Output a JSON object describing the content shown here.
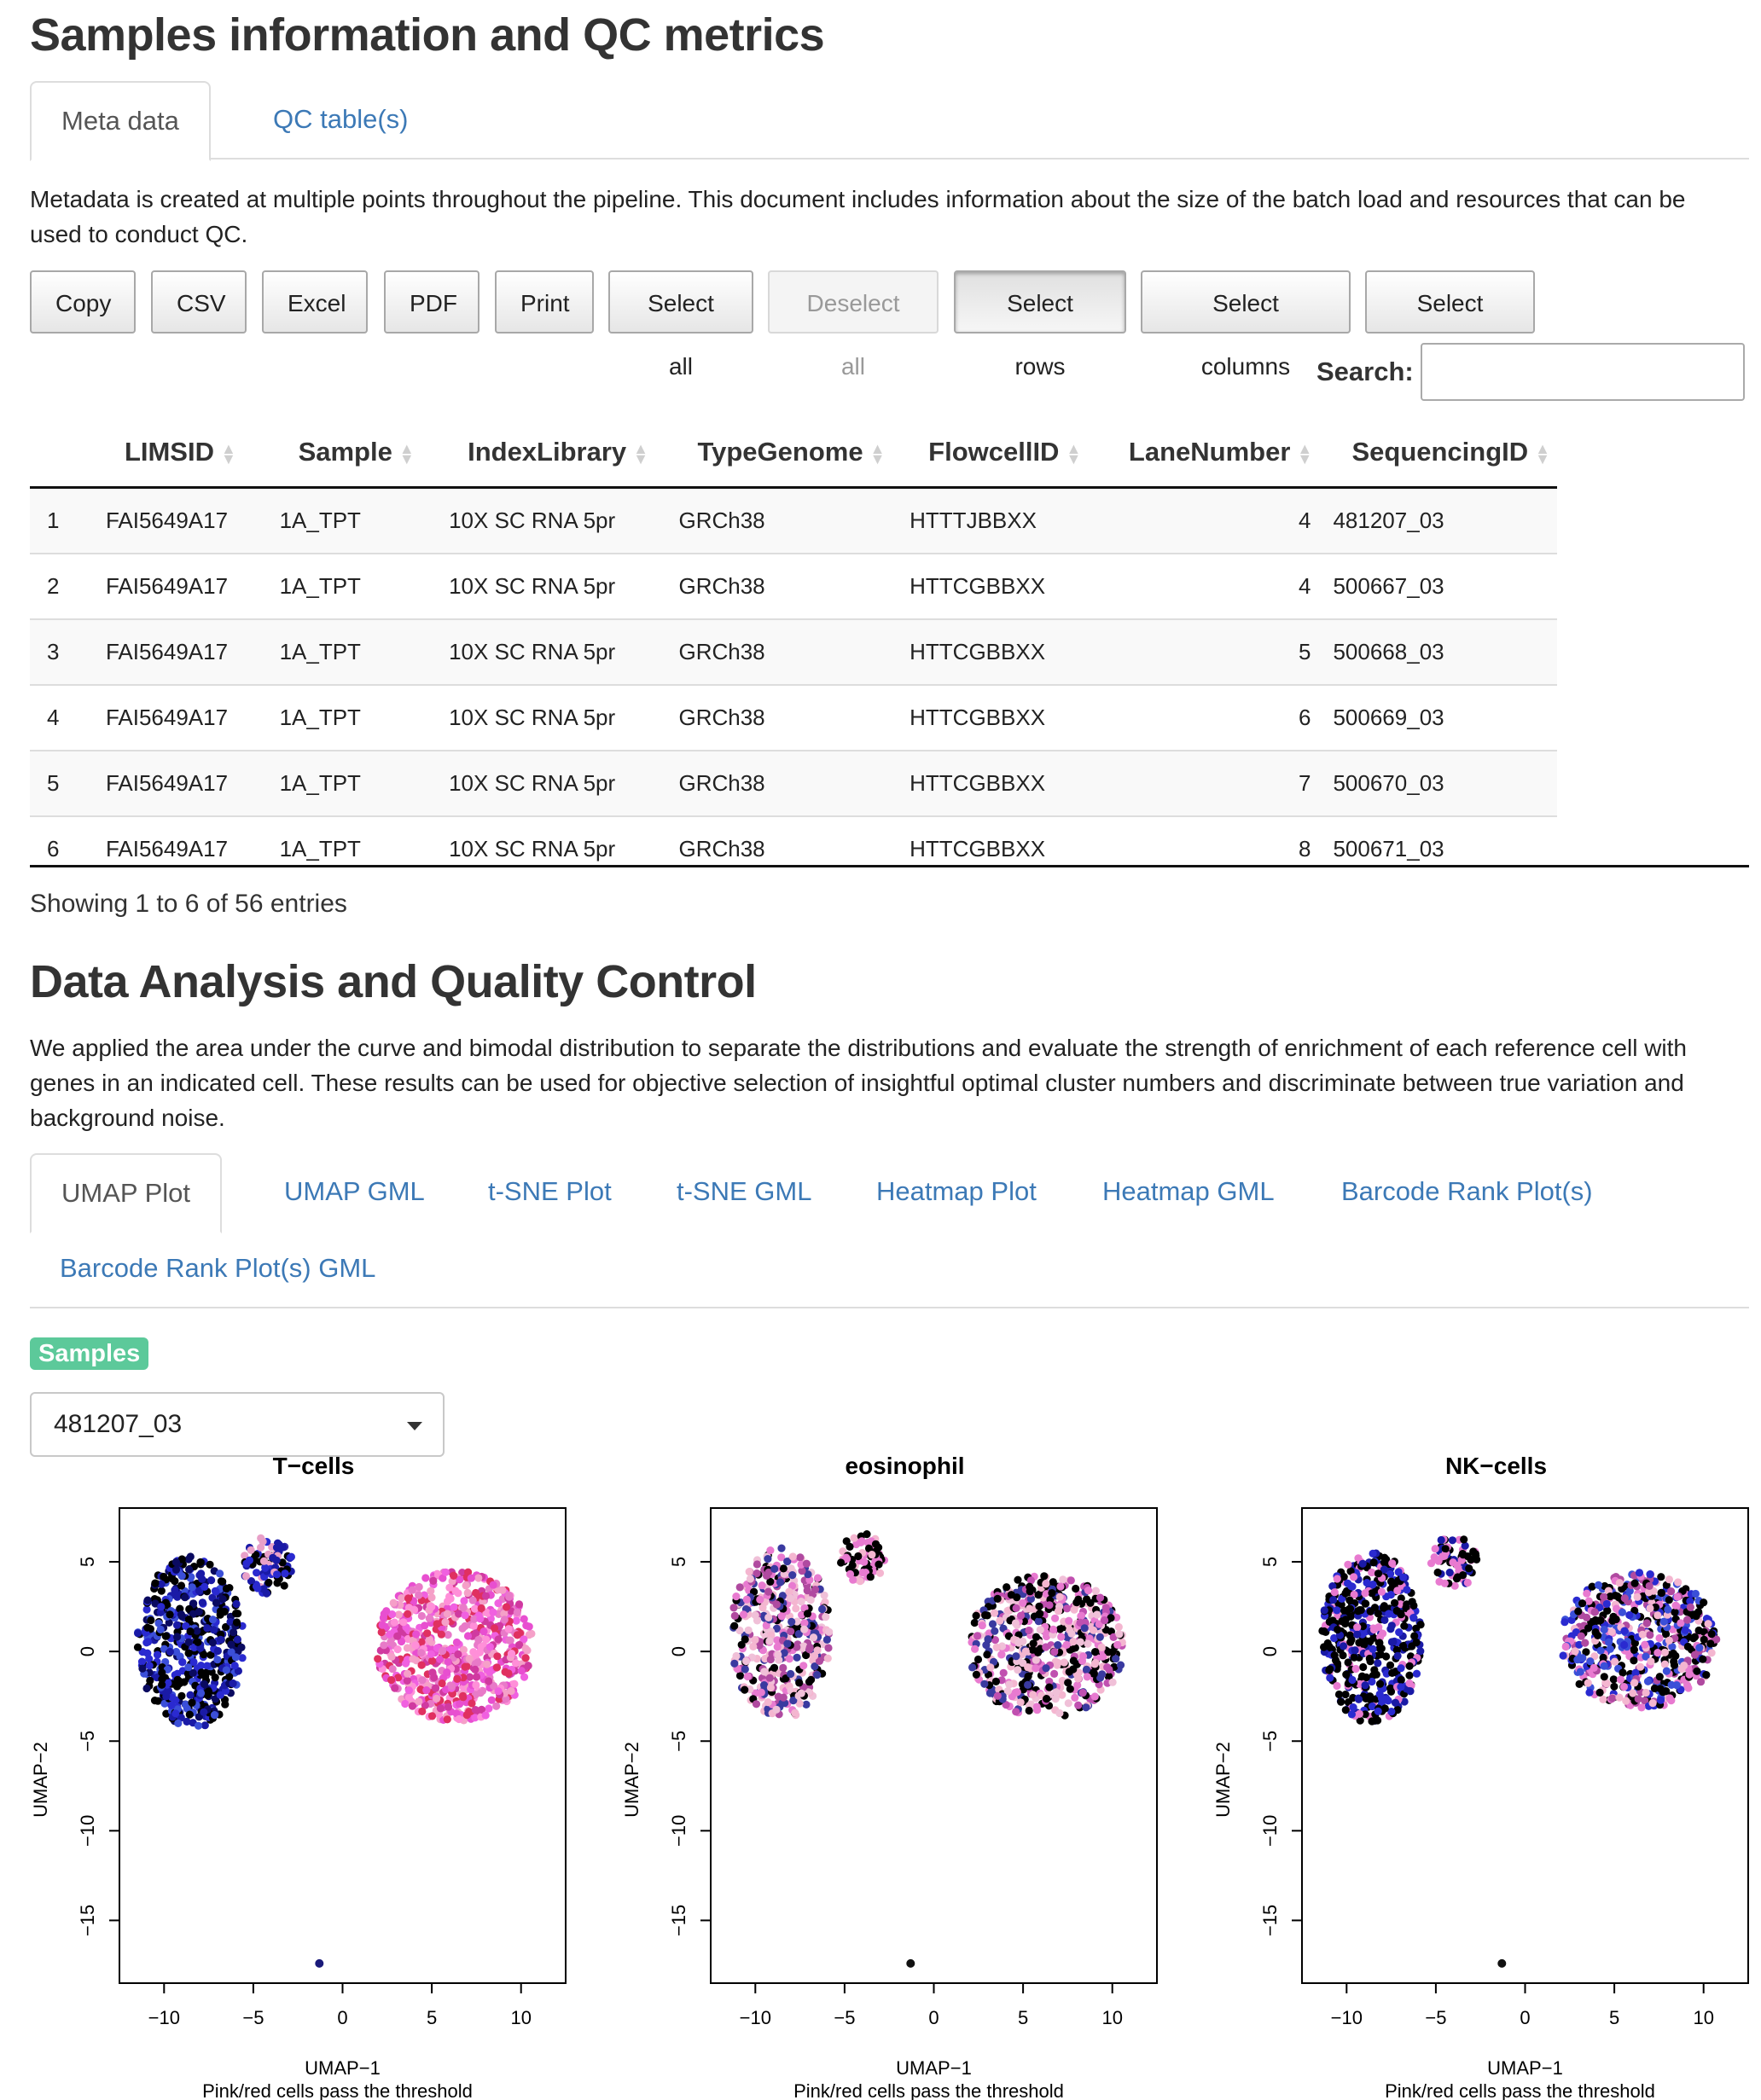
{
  "section1": {
    "title": "Samples information and QC metrics",
    "tabs": [
      {
        "label": "Meta data",
        "active": true
      },
      {
        "label": "QC table(s)",
        "active": false
      }
    ],
    "description": "Metadata is created at multiple points throughout the pipeline. This document includes information about the size of the batch load and resources that can be used to conduct QC.",
    "buttons": [
      {
        "label": "Copy",
        "state": "normal"
      },
      {
        "label": "CSV",
        "state": "normal"
      },
      {
        "label": "Excel",
        "state": "normal"
      },
      {
        "label": "PDF",
        "state": "normal"
      },
      {
        "label": "Print",
        "state": "normal"
      },
      {
        "label": "Select all",
        "state": "normal"
      },
      {
        "label": "Deselect all",
        "state": "disabled"
      },
      {
        "label": "Select rows",
        "state": "pressed"
      },
      {
        "label": "Select columns",
        "state": "normal"
      },
      {
        "label": "Select cells",
        "state": "normal"
      }
    ],
    "search": {
      "label": "Search:",
      "value": ""
    },
    "table": {
      "columns": [
        "",
        "LIMSID",
        "Sample",
        "IndexLibrary",
        "TypeGenome",
        "FlowcellID",
        "LaneNumber",
        "SequencingID"
      ],
      "rows": [
        [
          "1",
          "FAI5649A17",
          "1A_TPT",
          "10X SC RNA 5pr",
          "GRCh38",
          "HTTTJBBXX",
          "4",
          "481207_03"
        ],
        [
          "2",
          "FAI5649A17",
          "1A_TPT",
          "10X SC RNA 5pr",
          "GRCh38",
          "HTTCGBBXX",
          "4",
          "500667_03"
        ],
        [
          "3",
          "FAI5649A17",
          "1A_TPT",
          "10X SC RNA 5pr",
          "GRCh38",
          "HTTCGBBXX",
          "5",
          "500668_03"
        ],
        [
          "4",
          "FAI5649A17",
          "1A_TPT",
          "10X SC RNA 5pr",
          "GRCh38",
          "HTTCGBBXX",
          "6",
          "500669_03"
        ],
        [
          "5",
          "FAI5649A17",
          "1A_TPT",
          "10X SC RNA 5pr",
          "GRCh38",
          "HTTCGBBXX",
          "7",
          "500670_03"
        ],
        [
          "6",
          "FAI5649A17",
          "1A_TPT",
          "10X SC RNA 5pr",
          "GRCh38",
          "HTTCGBBXX",
          "8",
          "500671_03"
        ]
      ]
    },
    "info": "Showing 1 to 6 of 56 entries"
  },
  "section2": {
    "title": "Data Analysis and Quality Control",
    "description": "We applied the area under the curve and bimodal distribution to separate the distributions and evaluate the strength of enrichment of each reference cell with genes in an indicated cell. These results can be used for objective selection of insightful optimal cluster numbers and discriminate between true variation and background noise.",
    "tabs": [
      {
        "label": "UMAP Plot",
        "active": true
      },
      {
        "label": "UMAP GML",
        "active": false
      },
      {
        "label": "t-SNE Plot",
        "active": false
      },
      {
        "label": "t-SNE GML",
        "active": false
      },
      {
        "label": "Heatmap Plot",
        "active": false
      },
      {
        "label": "Heatmap GML",
        "active": false
      },
      {
        "label": "Barcode Rank Plot(s)",
        "active": false
      },
      {
        "label": "Barcode Rank Plot(s) GML",
        "active": false
      }
    ],
    "samples_badge": "Samples",
    "sample_select": {
      "value": "481207_03"
    }
  },
  "chart_data": [
    {
      "type": "scatter",
      "title": "T−cells",
      "xlabel": "UMAP−1",
      "ylabel": "UMAP−2",
      "caption": "Pink/red cells pass the threshold",
      "xlim": [
        -12.5,
        12.5
      ],
      "ylim": [
        -18.5,
        8
      ],
      "xticks": [
        "−10",
        "−5",
        "0",
        "5",
        "10"
      ],
      "xtick_values": [
        -10,
        -5,
        0,
        5,
        10
      ],
      "yticks": [
        "5",
        "0",
        "−5",
        "−10",
        "−15"
      ],
      "ytick_values": [
        5,
        0,
        -5,
        -10,
        -15
      ],
      "clusters": [
        {
          "cx": -8.5,
          "cy": 0.5,
          "rx": 3,
          "ry": 4.8,
          "n": 500,
          "palette": [
            "#000000",
            "#000000",
            "#1a1aa6",
            "#2a2ad0",
            "#0a0a60",
            "#3b4fd8"
          ]
        },
        {
          "cx": -4.2,
          "cy": 4.8,
          "rx": 1.4,
          "ry": 1.6,
          "n": 90,
          "palette": [
            "#000000",
            "#1a1aa6",
            "#2a2ad0",
            "#e8a0c8"
          ]
        },
        {
          "cx": 6.3,
          "cy": 0.3,
          "rx": 4.4,
          "ry": 4.2,
          "n": 650,
          "palette": [
            "#e84fd0",
            "#f060e0",
            "#e87ac8",
            "#ff8fd8",
            "#d03aa0",
            "#f5a0c8",
            "#e03060"
          ]
        }
      ],
      "outliers": [
        {
          "x": -1.3,
          "y": -17.4,
          "color": "#1a1a7a"
        }
      ]
    },
    {
      "type": "scatter",
      "title": "eosinophil",
      "xlabel": "UMAP−1",
      "ylabel": "UMAP−2",
      "caption": "Pink/red cells pass the threshold",
      "xlim": [
        -12.5,
        12.5
      ],
      "ylim": [
        -18.5,
        8
      ],
      "xticks": [
        "−10",
        "−5",
        "0",
        "5",
        "10"
      ],
      "xtick_values": [
        -10,
        -5,
        0,
        5,
        10
      ],
      "yticks": [
        "5",
        "0",
        "−5",
        "−10",
        "−15"
      ],
      "ytick_values": [
        5,
        0,
        -5,
        -10,
        -15
      ],
      "clusters": [
        {
          "cx": -8.6,
          "cy": 1.0,
          "rx": 2.8,
          "ry": 4.8,
          "n": 420,
          "palette": [
            "#000000",
            "#f4b6d0",
            "#e87ad0",
            "#f0c0d8",
            "#b04aa0",
            "#3a3aa0"
          ]
        },
        {
          "cx": -4.0,
          "cy": 5.2,
          "rx": 1.3,
          "ry": 1.4,
          "n": 70,
          "palette": [
            "#000000",
            "#f4b6d0",
            "#e87ad0"
          ]
        },
        {
          "cx": 6.3,
          "cy": 0.3,
          "rx": 4.4,
          "ry": 4.0,
          "n": 560,
          "palette": [
            "#000000",
            "#f4b6d0",
            "#e87ad0",
            "#f0c0d8",
            "#c050b0",
            "#3a3aa0",
            "#000000"
          ]
        }
      ],
      "outliers": [
        {
          "x": -1.3,
          "y": -17.4,
          "color": "#111111"
        }
      ]
    },
    {
      "type": "scatter",
      "title": "NK−cells",
      "xlabel": "UMAP−1",
      "ylabel": "UMAP−2",
      "caption": "Pink/red cells pass the threshold",
      "xlim": [
        -12.5,
        12.5
      ],
      "ylim": [
        -18.5,
        8
      ],
      "xticks": [
        "−10",
        "−5",
        "0",
        "5",
        "10"
      ],
      "xtick_values": [
        -10,
        -5,
        0,
        5,
        10
      ],
      "yticks": [
        "5",
        "0",
        "−5",
        "−10",
        "−15"
      ],
      "ytick_values": [
        5,
        0,
        -5,
        -10,
        -15
      ],
      "clusters": [
        {
          "cx": -8.6,
          "cy": 0.8,
          "rx": 2.8,
          "ry": 4.8,
          "n": 460,
          "palette": [
            "#000000",
            "#000000",
            "#000000",
            "#1a1aa6",
            "#2a2ad0",
            "#e87ad0"
          ]
        },
        {
          "cx": -4.0,
          "cy": 5.0,
          "rx": 1.3,
          "ry": 1.5,
          "n": 70,
          "palette": [
            "#000000",
            "#1a1aa6",
            "#e87ad0"
          ]
        },
        {
          "cx": 6.4,
          "cy": 0.6,
          "rx": 4.4,
          "ry": 3.8,
          "n": 560,
          "palette": [
            "#000000",
            "#000000",
            "#f4b6d0",
            "#e87ad0",
            "#2a2ad0",
            "#b04aa0",
            "#3b4fd8"
          ]
        }
      ],
      "outliers": [
        {
          "x": -1.3,
          "y": -17.4,
          "color": "#111111"
        }
      ]
    }
  ]
}
